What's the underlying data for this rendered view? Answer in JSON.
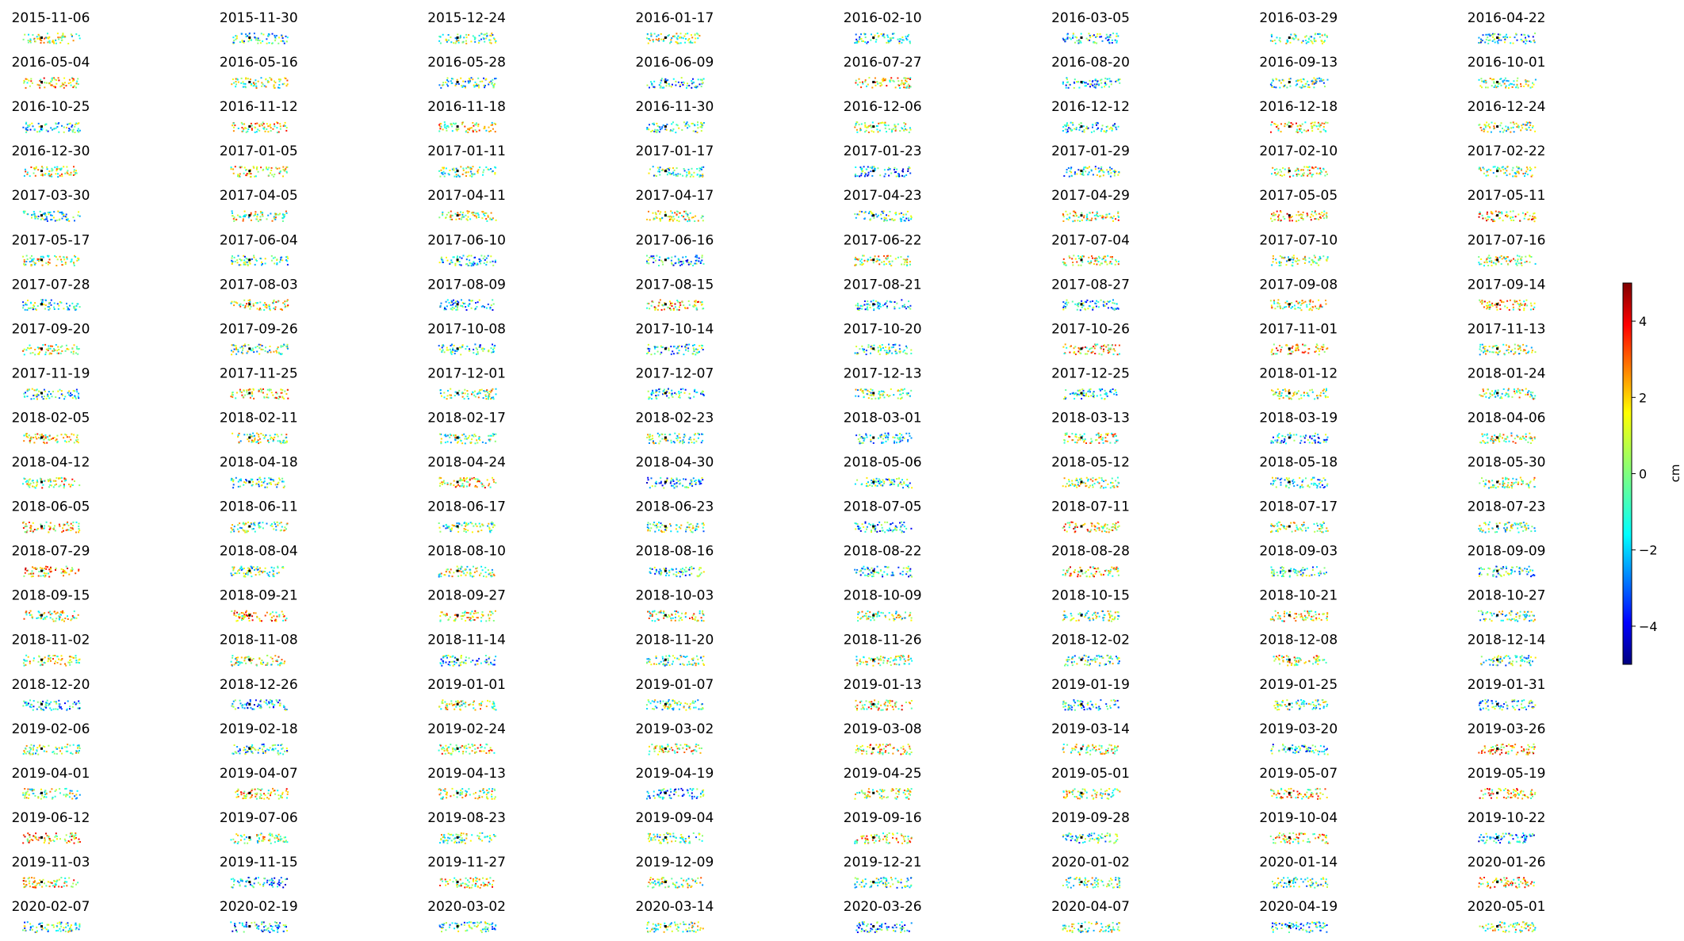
{
  "chart_data": {
    "type": "scatter",
    "layout": "small-multiples",
    "colormap": "jet",
    "colorbar": {
      "label": "cm",
      "vmin": -5,
      "vmax": 5,
      "ticks": [
        -4,
        -2,
        0,
        2,
        4
      ],
      "tick_labels": [
        "−4",
        "−2",
        "0",
        "2",
        "4"
      ],
      "placement": "right"
    },
    "axes": "off",
    "dates": [
      "2015-11-06",
      "2015-11-30",
      "2015-12-24",
      "2016-01-17",
      "2016-02-10",
      "2016-03-05",
      "2016-03-29",
      "2016-04-22",
      "2016-05-04",
      "2016-05-16",
      "2016-05-28",
      "2016-06-09",
      "2016-07-27",
      "2016-08-20",
      "2016-09-13",
      "2016-10-01",
      "2016-10-25",
      "2016-11-12",
      "2016-11-18",
      "2016-11-30",
      "2016-12-06",
      "2016-12-12",
      "2016-12-18",
      "2016-12-24",
      "2016-12-30",
      "2017-01-05",
      "2017-01-11",
      "2017-01-17",
      "2017-01-23",
      "2017-01-29",
      "2017-02-10",
      "2017-02-22",
      "2017-03-30",
      "2017-04-05",
      "2017-04-11",
      "2017-04-17",
      "2017-04-23",
      "2017-04-29",
      "2017-05-05",
      "2017-05-11",
      "2017-05-17",
      "2017-06-04",
      "2017-06-10",
      "2017-06-16",
      "2017-06-22",
      "2017-07-04",
      "2017-07-10",
      "2017-07-16",
      "2017-07-28",
      "2017-08-03",
      "2017-08-09",
      "2017-08-15",
      "2017-08-21",
      "2017-08-27",
      "2017-09-08",
      "2017-09-14",
      "2017-09-20",
      "2017-09-26",
      "2017-10-08",
      "2017-10-14",
      "2017-10-20",
      "2017-10-26",
      "2017-11-01",
      "2017-11-13",
      "2017-11-19",
      "2017-11-25",
      "2017-12-01",
      "2017-12-07",
      "2017-12-13",
      "2017-12-25",
      "2018-01-12",
      "2018-01-24",
      "2018-02-05",
      "2018-02-11",
      "2018-02-17",
      "2018-02-23",
      "2018-03-01",
      "2018-03-13",
      "2018-03-19",
      "2018-04-06",
      "2018-04-12",
      "2018-04-18",
      "2018-04-24",
      "2018-04-30",
      "2018-05-06",
      "2018-05-12",
      "2018-05-18",
      "2018-05-30",
      "2018-06-05",
      "2018-06-11",
      "2018-06-17",
      "2018-06-23",
      "2018-07-05",
      "2018-07-11",
      "2018-07-17",
      "2018-07-23",
      "2018-07-29",
      "2018-08-04",
      "2018-08-10",
      "2018-08-16",
      "2018-08-22",
      "2018-08-28",
      "2018-09-03",
      "2018-09-09",
      "2018-09-15",
      "2018-09-21",
      "2018-09-27",
      "2018-10-03",
      "2018-10-09",
      "2018-10-15",
      "2018-10-21",
      "2018-10-27",
      "2018-11-02",
      "2018-11-08",
      "2018-11-14",
      "2018-11-20",
      "2018-11-26",
      "2018-12-02",
      "2018-12-08",
      "2018-12-14",
      "2018-12-20",
      "2018-12-26",
      "2019-01-01",
      "2019-01-07",
      "2019-01-13",
      "2019-01-19",
      "2019-01-25",
      "2019-01-31",
      "2019-02-06",
      "2019-02-18",
      "2019-02-24",
      "2019-03-02",
      "2019-03-08",
      "2019-03-14",
      "2019-03-20",
      "2019-03-26",
      "2019-04-01",
      "2019-04-07",
      "2019-04-13",
      "2019-04-19",
      "2019-04-25",
      "2019-05-01",
      "2019-05-07",
      "2019-05-19",
      "2019-06-12",
      "2019-07-06",
      "2019-08-23",
      "2019-09-04",
      "2019-09-16",
      "2019-09-28",
      "2019-10-04",
      "2019-10-22",
      "2019-11-03",
      "2019-11-15",
      "2019-11-27",
      "2019-12-09",
      "2019-12-21",
      "2020-01-02",
      "2020-01-14",
      "2020-01-26",
      "2020-02-07",
      "2020-02-19",
      "2020-03-02",
      "2020-03-14",
      "2020-03-26",
      "2020-04-07",
      "2020-04-19",
      "2020-05-01"
    ]
  }
}
